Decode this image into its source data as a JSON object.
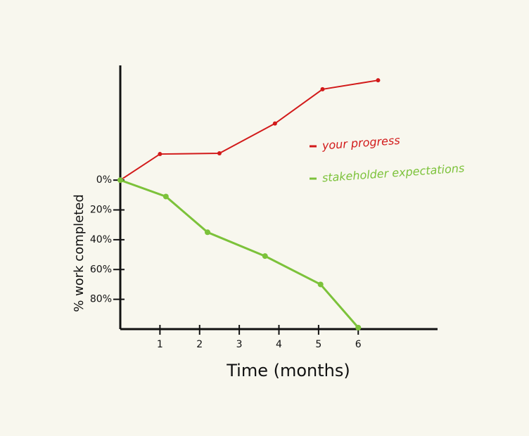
{
  "chart_data": {
    "type": "line",
    "x_label": "Time (months)",
    "y_label": "% work completed",
    "xlim": [
      0,
      8
    ],
    "ylim": [
      100,
      -77
    ],
    "xticks": [
      1,
      2,
      3,
      4,
      5,
      6
    ],
    "yticks": [
      {
        "value": 0,
        "label": "0%"
      },
      {
        "value": 20,
        "label": "20%"
      },
      {
        "value": 40,
        "label": "40%"
      },
      {
        "value": 60,
        "label": "60%"
      },
      {
        "value": 80,
        "label": "80%"
      }
    ],
    "legend_position": "right",
    "series": [
      {
        "name": "your progress",
        "color": "#d21a1a",
        "x": [
          0,
          1,
          2.5,
          3.9,
          5.1,
          6.5
        ],
        "values": [
          0,
          -17.5,
          -18,
          -38,
          -61,
          -67
        ]
      },
      {
        "name": "stakeholder expectations",
        "color": "#7cc23a",
        "x": [
          0,
          1.15,
          2.2,
          3.65,
          5.05,
          6.0
        ],
        "values": [
          0,
          11,
          35,
          51,
          70,
          99
        ]
      }
    ]
  }
}
